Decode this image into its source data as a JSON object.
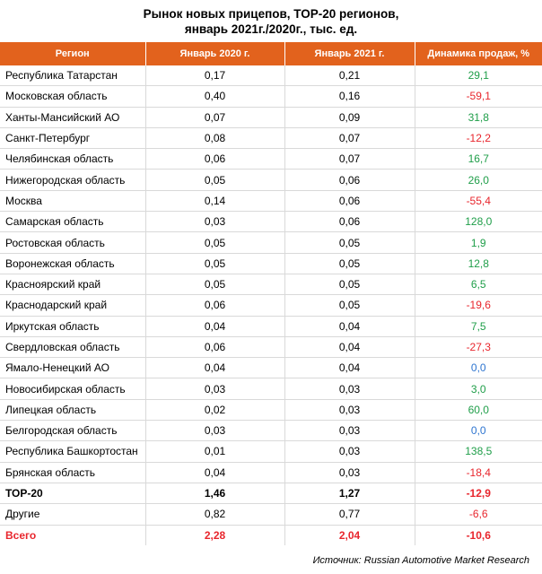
{
  "title_line1": "Рынок новых прицепов, ТОР-20 регионов,",
  "title_line2": "январь 2021г./2020г., тыс. ед.",
  "colors": {
    "header_bg": "#e2621d",
    "positive": "#1f9e49",
    "negative": "#e8262d",
    "zero": "#2e75d0",
    "total_text": "#e8262d"
  },
  "chart_data": {
    "type": "table",
    "columns": [
      "Регион",
      "Январь 2020 г.",
      "Январь 2021 г.",
      "Динамика продаж, %"
    ],
    "rows": [
      {
        "region": "Республика Татарстан",
        "y2020": "0,17",
        "y2021": "0,21",
        "change": "29,1"
      },
      {
        "region": "Московская область",
        "y2020": "0,40",
        "y2021": "0,16",
        "change": "-59,1"
      },
      {
        "region": "Ханты-Мансийский АО",
        "y2020": "0,07",
        "y2021": "0,09",
        "change": "31,8"
      },
      {
        "region": "Санкт-Петербург",
        "y2020": "0,08",
        "y2021": "0,07",
        "change": "-12,2"
      },
      {
        "region": "Челябинская область",
        "y2020": "0,06",
        "y2021": "0,07",
        "change": "16,7"
      },
      {
        "region": "Нижегородская область",
        "y2020": "0,05",
        "y2021": "0,06",
        "change": "26,0"
      },
      {
        "region": "Москва",
        "y2020": "0,14",
        "y2021": "0,06",
        "change": "-55,4"
      },
      {
        "region": "Самарская область",
        "y2020": "0,03",
        "y2021": "0,06",
        "change": "128,0"
      },
      {
        "region": "Ростовская область",
        "y2020": "0,05",
        "y2021": "0,05",
        "change": "1,9"
      },
      {
        "region": "Воронежская область",
        "y2020": "0,05",
        "y2021": "0,05",
        "change": "12,8"
      },
      {
        "region": "Красноярский край",
        "y2020": "0,05",
        "y2021": "0,05",
        "change": "6,5"
      },
      {
        "region": "Краснодарский край",
        "y2020": "0,06",
        "y2021": "0,05",
        "change": "-19,6"
      },
      {
        "region": "Иркутская область",
        "y2020": "0,04",
        "y2021": "0,04",
        "change": "7,5"
      },
      {
        "region": "Свердловская область",
        "y2020": "0,06",
        "y2021": "0,04",
        "change": "-27,3"
      },
      {
        "region": "Ямало-Ненецкий АО",
        "y2020": "0,04",
        "y2021": "0,04",
        "change": "0,0"
      },
      {
        "region": "Новосибирская область",
        "y2020": "0,03",
        "y2021": "0,03",
        "change": "3,0"
      },
      {
        "region": "Липецкая область",
        "y2020": "0,02",
        "y2021": "0,03",
        "change": "60,0"
      },
      {
        "region": "Белгородская область",
        "y2020": "0,03",
        "y2021": "0,03",
        "change": "0,0"
      },
      {
        "region": "Республика Башкортостан",
        "y2020": "0,01",
        "y2021": "0,03",
        "change": "138,5"
      },
      {
        "region": "Брянская область",
        "y2020": "0,04",
        "y2021": "0,03",
        "change": "-18,4"
      }
    ],
    "summary_rows": [
      {
        "region": "ТОР-20",
        "y2020": "1,46",
        "y2021": "1,27",
        "change": "-12,9"
      },
      {
        "region": "Другие",
        "y2020": "0,82",
        "y2021": "0,77",
        "change": "-6,6"
      },
      {
        "region": "Всего",
        "y2020": "2,28",
        "y2021": "2,04",
        "change": "-10,6"
      }
    ]
  },
  "source": "Источник: Russian Automotive Market Research"
}
